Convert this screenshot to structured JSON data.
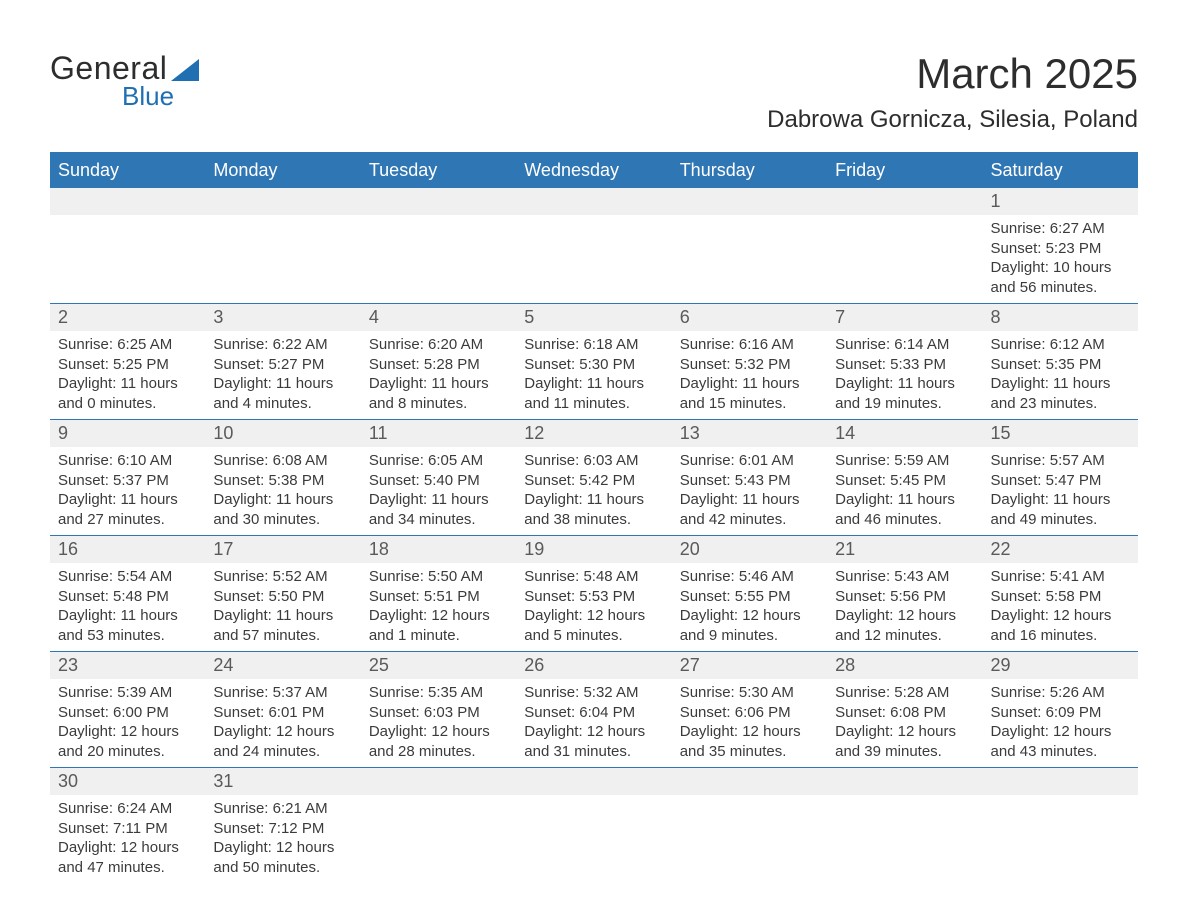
{
  "branding": {
    "name_part1": "General",
    "name_part2": "Blue",
    "text_color": "#2d2d2d",
    "accent_color": "#1f6fb2"
  },
  "title": {
    "month": "March 2025",
    "location": "Dabrowa Gornicza, Silesia, Poland",
    "title_fontsize": 42,
    "location_fontsize": 24
  },
  "colors": {
    "header_bg": "#2f76b5",
    "header_text": "#ffffff",
    "daynum_bg": "#f0f0f0",
    "border": "#2f76b5",
    "body_text": "#3b3b3b",
    "background": "#ffffff"
  },
  "columns": [
    "Sunday",
    "Monday",
    "Tuesday",
    "Wednesday",
    "Thursday",
    "Friday",
    "Saturday"
  ],
  "weeks": [
    [
      null,
      null,
      null,
      null,
      null,
      null,
      {
        "n": "1",
        "sr": "Sunrise: 6:27 AM",
        "ss": "Sunset: 5:23 PM",
        "d1": "Daylight: 10 hours",
        "d2": "and 56 minutes."
      }
    ],
    [
      {
        "n": "2",
        "sr": "Sunrise: 6:25 AM",
        "ss": "Sunset: 5:25 PM",
        "d1": "Daylight: 11 hours",
        "d2": "and 0 minutes."
      },
      {
        "n": "3",
        "sr": "Sunrise: 6:22 AM",
        "ss": "Sunset: 5:27 PM",
        "d1": "Daylight: 11 hours",
        "d2": "and 4 minutes."
      },
      {
        "n": "4",
        "sr": "Sunrise: 6:20 AM",
        "ss": "Sunset: 5:28 PM",
        "d1": "Daylight: 11 hours",
        "d2": "and 8 minutes."
      },
      {
        "n": "5",
        "sr": "Sunrise: 6:18 AM",
        "ss": "Sunset: 5:30 PM",
        "d1": "Daylight: 11 hours",
        "d2": "and 11 minutes."
      },
      {
        "n": "6",
        "sr": "Sunrise: 6:16 AM",
        "ss": "Sunset: 5:32 PM",
        "d1": "Daylight: 11 hours",
        "d2": "and 15 minutes."
      },
      {
        "n": "7",
        "sr": "Sunrise: 6:14 AM",
        "ss": "Sunset: 5:33 PM",
        "d1": "Daylight: 11 hours",
        "d2": "and 19 minutes."
      },
      {
        "n": "8",
        "sr": "Sunrise: 6:12 AM",
        "ss": "Sunset: 5:35 PM",
        "d1": "Daylight: 11 hours",
        "d2": "and 23 minutes."
      }
    ],
    [
      {
        "n": "9",
        "sr": "Sunrise: 6:10 AM",
        "ss": "Sunset: 5:37 PM",
        "d1": "Daylight: 11 hours",
        "d2": "and 27 minutes."
      },
      {
        "n": "10",
        "sr": "Sunrise: 6:08 AM",
        "ss": "Sunset: 5:38 PM",
        "d1": "Daylight: 11 hours",
        "d2": "and 30 minutes."
      },
      {
        "n": "11",
        "sr": "Sunrise: 6:05 AM",
        "ss": "Sunset: 5:40 PM",
        "d1": "Daylight: 11 hours",
        "d2": "and 34 minutes."
      },
      {
        "n": "12",
        "sr": "Sunrise: 6:03 AM",
        "ss": "Sunset: 5:42 PM",
        "d1": "Daylight: 11 hours",
        "d2": "and 38 minutes."
      },
      {
        "n": "13",
        "sr": "Sunrise: 6:01 AM",
        "ss": "Sunset: 5:43 PM",
        "d1": "Daylight: 11 hours",
        "d2": "and 42 minutes."
      },
      {
        "n": "14",
        "sr": "Sunrise: 5:59 AM",
        "ss": "Sunset: 5:45 PM",
        "d1": "Daylight: 11 hours",
        "d2": "and 46 minutes."
      },
      {
        "n": "15",
        "sr": "Sunrise: 5:57 AM",
        "ss": "Sunset: 5:47 PM",
        "d1": "Daylight: 11 hours",
        "d2": "and 49 minutes."
      }
    ],
    [
      {
        "n": "16",
        "sr": "Sunrise: 5:54 AM",
        "ss": "Sunset: 5:48 PM",
        "d1": "Daylight: 11 hours",
        "d2": "and 53 minutes."
      },
      {
        "n": "17",
        "sr": "Sunrise: 5:52 AM",
        "ss": "Sunset: 5:50 PM",
        "d1": "Daylight: 11 hours",
        "d2": "and 57 minutes."
      },
      {
        "n": "18",
        "sr": "Sunrise: 5:50 AM",
        "ss": "Sunset: 5:51 PM",
        "d1": "Daylight: 12 hours",
        "d2": "and 1 minute."
      },
      {
        "n": "19",
        "sr": "Sunrise: 5:48 AM",
        "ss": "Sunset: 5:53 PM",
        "d1": "Daylight: 12 hours",
        "d2": "and 5 minutes."
      },
      {
        "n": "20",
        "sr": "Sunrise: 5:46 AM",
        "ss": "Sunset: 5:55 PM",
        "d1": "Daylight: 12 hours",
        "d2": "and 9 minutes."
      },
      {
        "n": "21",
        "sr": "Sunrise: 5:43 AM",
        "ss": "Sunset: 5:56 PM",
        "d1": "Daylight: 12 hours",
        "d2": "and 12 minutes."
      },
      {
        "n": "22",
        "sr": "Sunrise: 5:41 AM",
        "ss": "Sunset: 5:58 PM",
        "d1": "Daylight: 12 hours",
        "d2": "and 16 minutes."
      }
    ],
    [
      {
        "n": "23",
        "sr": "Sunrise: 5:39 AM",
        "ss": "Sunset: 6:00 PM",
        "d1": "Daylight: 12 hours",
        "d2": "and 20 minutes."
      },
      {
        "n": "24",
        "sr": "Sunrise: 5:37 AM",
        "ss": "Sunset: 6:01 PM",
        "d1": "Daylight: 12 hours",
        "d2": "and 24 minutes."
      },
      {
        "n": "25",
        "sr": "Sunrise: 5:35 AM",
        "ss": "Sunset: 6:03 PM",
        "d1": "Daylight: 12 hours",
        "d2": "and 28 minutes."
      },
      {
        "n": "26",
        "sr": "Sunrise: 5:32 AM",
        "ss": "Sunset: 6:04 PM",
        "d1": "Daylight: 12 hours",
        "d2": "and 31 minutes."
      },
      {
        "n": "27",
        "sr": "Sunrise: 5:30 AM",
        "ss": "Sunset: 6:06 PM",
        "d1": "Daylight: 12 hours",
        "d2": "and 35 minutes."
      },
      {
        "n": "28",
        "sr": "Sunrise: 5:28 AM",
        "ss": "Sunset: 6:08 PM",
        "d1": "Daylight: 12 hours",
        "d2": "and 39 minutes."
      },
      {
        "n": "29",
        "sr": "Sunrise: 5:26 AM",
        "ss": "Sunset: 6:09 PM",
        "d1": "Daylight: 12 hours",
        "d2": "and 43 minutes."
      }
    ],
    [
      {
        "n": "30",
        "sr": "Sunrise: 6:24 AM",
        "ss": "Sunset: 7:11 PM",
        "d1": "Daylight: 12 hours",
        "d2": "and 47 minutes."
      },
      {
        "n": "31",
        "sr": "Sunrise: 6:21 AM",
        "ss": "Sunset: 7:12 PM",
        "d1": "Daylight: 12 hours",
        "d2": "and 50 minutes."
      },
      null,
      null,
      null,
      null,
      null
    ]
  ]
}
